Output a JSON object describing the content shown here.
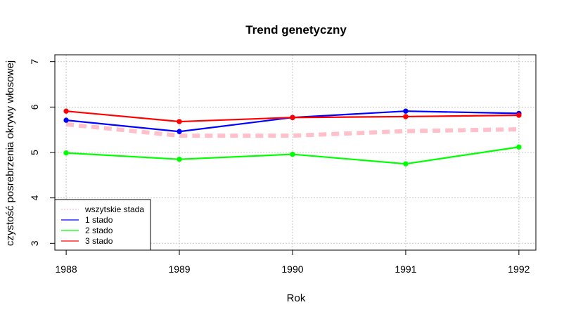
{
  "chart_data": {
    "type": "line",
    "title": "Trend genetyczny",
    "xlabel": "Rok",
    "ylabel": "czystość posrebrzenia okrywy włosowej",
    "x": [
      1988,
      1989,
      1990,
      1991,
      1992
    ],
    "x_ticks": [
      "1988",
      "1989",
      "1990",
      "1991",
      "1992"
    ],
    "y_ticks": [
      "3",
      "4",
      "5",
      "6",
      "7"
    ],
    "xlim": [
      1987.9,
      1992.15
    ],
    "ylim": [
      2.85,
      7.15
    ],
    "grid": true,
    "legend_position": "bottom-left",
    "series": [
      {
        "name": "wszytskie stada",
        "values": [
          5.62,
          5.37,
          5.37,
          5.47,
          5.51
        ],
        "color": "#ffc0cb",
        "style": "dashed",
        "markers": false
      },
      {
        "name": "1 stado",
        "values": [
          5.71,
          5.46,
          5.77,
          5.91,
          5.86
        ],
        "color": "#0000ff",
        "style": "solid",
        "markers": true
      },
      {
        "name": "2 stado",
        "values": [
          4.99,
          4.85,
          4.96,
          4.75,
          5.12
        ],
        "color": "#00ff00",
        "style": "solid",
        "markers": true
      },
      {
        "name": "3 stado",
        "values": [
          5.91,
          5.68,
          5.77,
          5.79,
          5.82
        ],
        "color": "#ff0000",
        "style": "solid",
        "markers": true
      }
    ]
  }
}
